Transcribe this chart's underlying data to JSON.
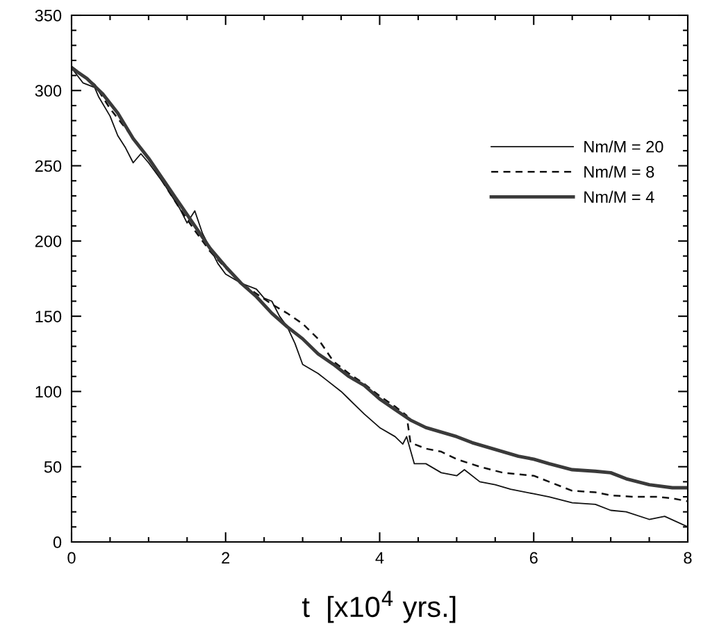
{
  "chart_data": {
    "type": "line",
    "xlabel": "t  [x10$^{4}$ yrs.]",
    "xlim": [
      0,
      8
    ],
    "ylim": [
      0,
      350
    ],
    "xticks": [
      0,
      {
        "value": 0.5,
        "label": null
      },
      {
        "value": 1,
        "label": null
      },
      {
        "value": 1.5,
        "label": null
      },
      2,
      {
        "value": 2.5,
        "label": null
      },
      {
        "value": 3,
        "label": null
      },
      {
        "value": 3.5,
        "label": null
      },
      4,
      {
        "value": 4.5,
        "label": null
      },
      {
        "value": 5,
        "label": null
      },
      {
        "value": 5.5,
        "label": null
      },
      6,
      {
        "value": 6.5,
        "label": null
      },
      {
        "value": 7,
        "label": null
      },
      {
        "value": 7.5,
        "label": null
      },
      8
    ],
    "yticks": [
      0,
      {
        "value": 10,
        "label": null
      },
      {
        "value": 20,
        "label": null
      },
      {
        "value": 30,
        "label": null
      },
      {
        "value": 40,
        "label": null
      },
      50,
      {
        "value": 60,
        "label": null
      },
      {
        "value": 70,
        "label": null
      },
      {
        "value": 80,
        "label": null
      },
      {
        "value": 90,
        "label": null
      },
      100,
      {
        "value": 110,
        "label": null
      },
      {
        "value": 120,
        "label": null
      },
      {
        "value": 130,
        "label": null
      },
      {
        "value": 140,
        "label": null
      },
      150,
      {
        "value": 160,
        "label": null
      },
      {
        "value": 170,
        "label": null
      },
      {
        "value": 180,
        "label": null
      },
      {
        "value": 190,
        "label": null
      },
      200,
      {
        "value": 210,
        "label": null
      },
      {
        "value": 220,
        "label": null
      },
      {
        "value": 230,
        "label": null
      },
      {
        "value": 240,
        "label": null
      },
      250,
      {
        "value": 260,
        "label": null
      },
      {
        "value": 270,
        "label": null
      },
      {
        "value": 280,
        "label": null
      },
      {
        "value": 290,
        "label": null
      },
      300,
      {
        "value": 310,
        "label": null
      },
      {
        "value": 320,
        "label": null
      },
      {
        "value": 330,
        "label": null
      },
      {
        "value": 340,
        "label": null
      },
      350
    ],
    "grid": false,
    "legend": "right",
    "marker": "none",
    "series": [
      {
        "name": "Nm/M = 20",
        "color": "#111111",
        "line_style": "solid",
        "x": [
          0,
          0.15,
          0.3,
          0.35,
          0.5,
          0.6,
          0.7,
          0.8,
          0.9,
          1.0,
          1.2,
          1.4,
          1.5,
          1.6,
          1.7,
          1.8,
          1.9,
          2.0,
          2.2,
          2.4,
          2.5,
          2.6,
          2.7,
          2.8,
          2.9,
          3.0,
          3.2,
          3.3,
          3.5,
          3.6,
          3.8,
          4.0,
          4.2,
          4.3,
          4.35,
          4.45,
          4.6,
          4.8,
          5.0,
          5.1,
          5.3,
          5.5,
          5.7,
          6.0,
          6.2,
          6.5,
          6.8,
          7.0,
          7.2,
          7.5,
          7.7,
          8.0
        ],
        "values": [
          315,
          305,
          302,
          296,
          283,
          270,
          262,
          252,
          258,
          252,
          238,
          222,
          212,
          220,
          205,
          195,
          185,
          178,
          172,
          168,
          162,
          160,
          150,
          143,
          132,
          118,
          112,
          108,
          100,
          95,
          85,
          76,
          70,
          65,
          70,
          52,
          52,
          46,
          44,
          48,
          40,
          38,
          35,
          32,
          30,
          26,
          25,
          21,
          20,
          15,
          17,
          10
        ]
      },
      {
        "name": "Nm/M = 8",
        "color": "#111111",
        "line_style": "dashed",
        "x": [
          0,
          0.3,
          0.5,
          0.7,
          0.9,
          1.0,
          1.2,
          1.4,
          1.6,
          1.8,
          2.0,
          2.2,
          2.4,
          2.6,
          2.7,
          2.8,
          3.0,
          3.2,
          3.4,
          3.6,
          3.8,
          4.0,
          4.2,
          4.35,
          4.4,
          4.6,
          4.8,
          5.0,
          5.3,
          5.6,
          6.0,
          6.2,
          6.5,
          6.8,
          7.0,
          7.3,
          7.6,
          7.8,
          8.0
        ],
        "values": [
          316,
          304,
          288,
          275,
          262,
          255,
          238,
          222,
          207,
          193,
          182,
          172,
          165,
          158,
          155,
          152,
          145,
          135,
          120,
          112,
          105,
          97,
          90,
          84,
          66,
          62,
          60,
          55,
          50,
          46,
          44,
          40,
          34,
          33,
          31,
          30,
          30,
          29,
          27
        ]
      },
      {
        "name": "Nm/M = 4",
        "color": "#3a3a3a",
        "line_style": "solid",
        "x": [
          0,
          0.2,
          0.4,
          0.6,
          0.8,
          1.0,
          1.2,
          1.4,
          1.6,
          1.8,
          2.0,
          2.2,
          2.4,
          2.6,
          2.8,
          3.0,
          3.2,
          3.4,
          3.6,
          3.8,
          4.0,
          4.2,
          4.4,
          4.6,
          4.8,
          5.0,
          5.2,
          5.4,
          5.6,
          5.8,
          6.0,
          6.2,
          6.5,
          6.8,
          7.0,
          7.2,
          7.5,
          7.8,
          8.0
        ],
        "values": [
          315,
          308,
          298,
          285,
          268,
          255,
          240,
          225,
          210,
          195,
          183,
          172,
          163,
          152,
          143,
          135,
          125,
          118,
          110,
          104,
          95,
          88,
          81,
          76,
          73,
          70,
          66,
          63,
          60,
          57,
          55,
          52,
          48,
          47,
          46,
          42,
          38,
          36,
          36
        ]
      }
    ]
  }
}
